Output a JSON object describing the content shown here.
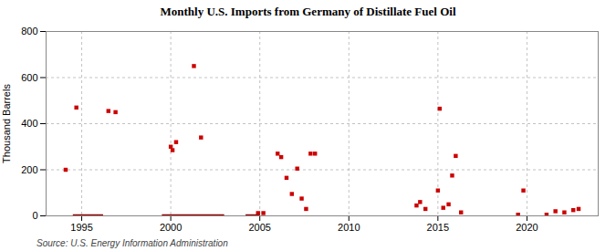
{
  "chart_data": {
    "type": "scatter",
    "title": "Monthly U.S. Imports from Germany of Distillate Fuel Oil",
    "ylabel": "Thousand Barrels",
    "source": "Source: U.S. Energy Information Administration",
    "xlim": [
      1993.0,
      2024.0
    ],
    "ylim": [
      0,
      800
    ],
    "xticks": [
      1995,
      2000,
      2005,
      2010,
      2015,
      2020
    ],
    "yticks": [
      0,
      200,
      400,
      600,
      800
    ],
    "grid": true,
    "series": [
      {
        "type": "scatter",
        "marker": "square",
        "color": "#cc0000",
        "x": [
          1994.1,
          1994.7,
          1996.5,
          1996.9,
          2000.0,
          2000.1,
          2000.3,
          2001.3,
          2001.7,
          2004.9,
          2005.2,
          2006.0,
          2006.2,
          2006.5,
          2006.8,
          2007.1,
          2007.35,
          2007.6,
          2007.85,
          2008.1,
          2013.8,
          2014.0,
          2014.3,
          2015.0,
          2015.1,
          2015.3,
          2015.6,
          2015.8,
          2016.0,
          2016.3,
          2019.5,
          2019.8,
          2021.1,
          2021.6,
          2022.1,
          2022.6,
          2022.9
        ],
        "values": [
          200,
          470,
          455,
          450,
          300,
          285,
          320,
          650,
          340,
          12,
          12,
          270,
          255,
          165,
          95,
          205,
          75,
          30,
          270,
          270,
          45,
          60,
          30,
          110,
          465,
          35,
          50,
          175,
          260,
          15,
          5,
          110,
          5,
          20,
          15,
          25,
          30
        ]
      },
      {
        "type": "line",
        "color": "#990000",
        "segments": [
          {
            "x": [
              1994.5,
              1996.2
            ],
            "values": [
              0,
              0
            ]
          },
          {
            "x": [
              1999.5,
              2003.0
            ],
            "values": [
              0,
              0
            ]
          },
          {
            "x": [
              2004.2,
              2005.0
            ],
            "values": [
              0,
              0
            ]
          }
        ]
      }
    ]
  }
}
